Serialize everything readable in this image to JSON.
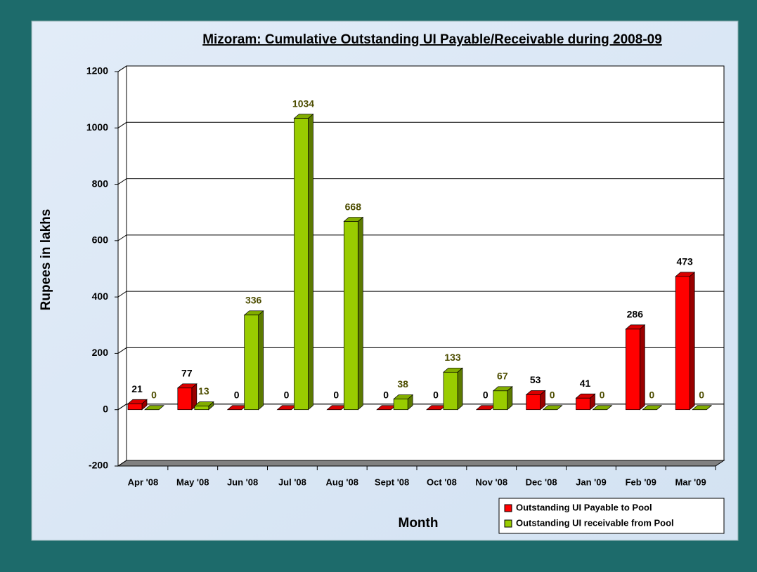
{
  "chart_data": {
    "type": "bar3d",
    "title": "Mizoram: Cumulative Outstanding UI Payable/Receivable during 2008-09",
    "xlabel": "Month",
    "ylabel": "Rupees in lakhs",
    "categories": [
      "Apr '08",
      "May '08",
      "Jun '08",
      "Jul '08",
      "Aug '08",
      "Sept '08",
      "Oct '08",
      "Nov '08",
      "Dec '08",
      "Jan '09",
      "Feb '09",
      "Mar '09"
    ],
    "series": [
      {
        "name": "Outstanding UI Payable to Pool",
        "color": "#ff0000",
        "values": [
          21,
          77,
          0,
          0,
          0,
          0,
          0,
          0,
          53,
          41,
          286,
          473
        ]
      },
      {
        "name": "Outstanding UI receivable from Pool",
        "color": "#99cc00",
        "values": [
          0,
          13,
          336,
          1034,
          668,
          38,
          133,
          67,
          0,
          0,
          0,
          0
        ]
      }
    ],
    "ylim": [
      -200,
      1200
    ],
    "yticks": [
      -200,
      0,
      200,
      400,
      600,
      800,
      1000,
      1200
    ],
    "grid": true,
    "legend": "lower right"
  }
}
